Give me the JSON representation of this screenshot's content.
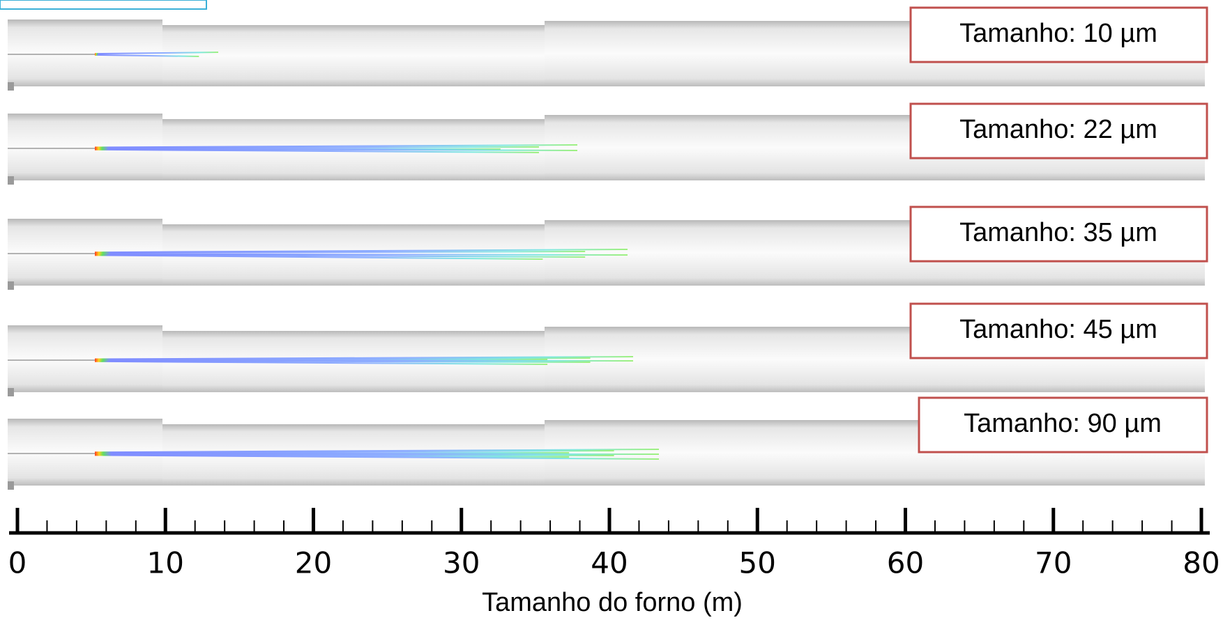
{
  "panels": [
    {
      "label": "Tamanho:  10 µm"
    },
    {
      "label": "Tamanho:  22 µm"
    },
    {
      "label": "Tamanho:  35 µm"
    },
    {
      "label": "Tamanho:  45 µm"
    },
    {
      "label": "Tamanho:  90 µm"
    }
  ],
  "axis": {
    "ticks": [
      0,
      10,
      20,
      30,
      40,
      50,
      60,
      70,
      80
    ],
    "label": "Tamanho do forno (m)"
  }
}
